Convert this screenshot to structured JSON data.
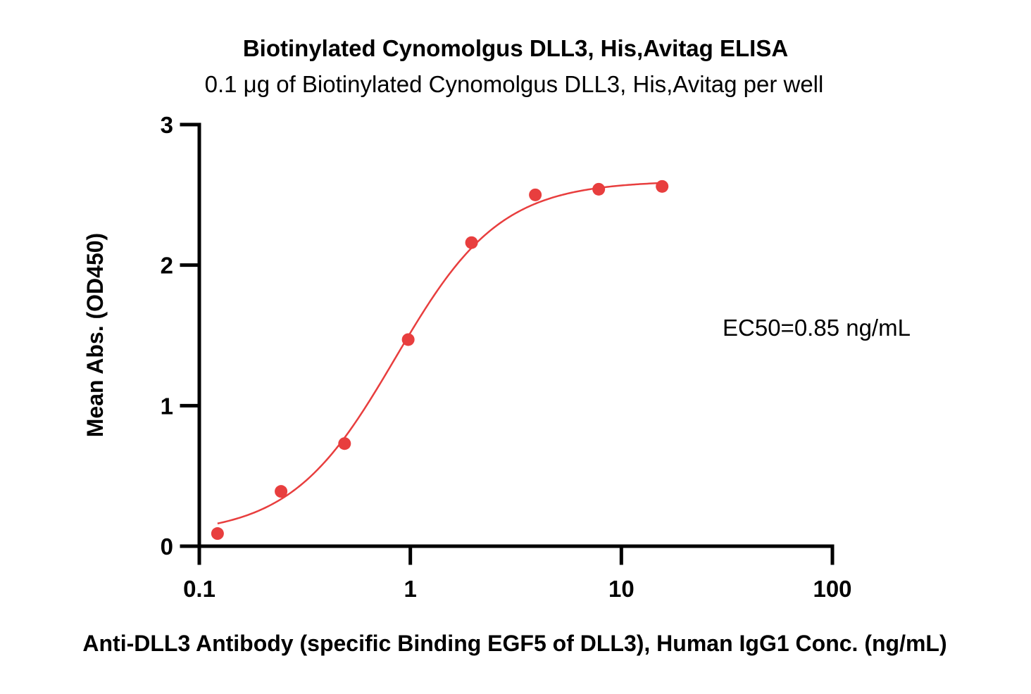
{
  "chart_data": {
    "type": "scatter",
    "title": "Biotinylated Cynomolgus DLL3, His,Avitag ELISA",
    "subtitle": "0.1 μg of Biotinylated Cynomolgus DLL3, His,Avitag per well",
    "xlabel": "Anti-DLL3 Antibody (specific Binding EGF5 of DLL3), Human IgG1 Conc. (ng/mL)",
    "ylabel": "Mean Abs. (OD450)",
    "x_scale": "log",
    "xlim": [
      0.1,
      100
    ],
    "ylim": [
      0,
      3
    ],
    "x_ticks": [
      0.1,
      1,
      10,
      100
    ],
    "x_tick_labels": [
      "0.1",
      "1",
      "10",
      "100"
    ],
    "y_ticks": [
      0,
      1,
      2,
      3
    ],
    "y_tick_labels": [
      "0",
      "1",
      "2",
      "3"
    ],
    "grid": false,
    "annotation": "EC50=0.85 ng/mL",
    "series": [
      {
        "color": "#e83e3e",
        "x": [
          0.122,
          0.244,
          0.488,
          0.977,
          1.95,
          3.91,
          7.81,
          15.6
        ],
        "y": [
          0.09,
          0.39,
          0.73,
          1.47,
          2.16,
          2.5,
          2.54,
          2.56
        ]
      }
    ],
    "fit": {
      "model": "4PL",
      "bottom": 0.08,
      "top": 2.6,
      "ec50": 0.85,
      "hill": 1.75,
      "color": "#e83e3e"
    }
  }
}
